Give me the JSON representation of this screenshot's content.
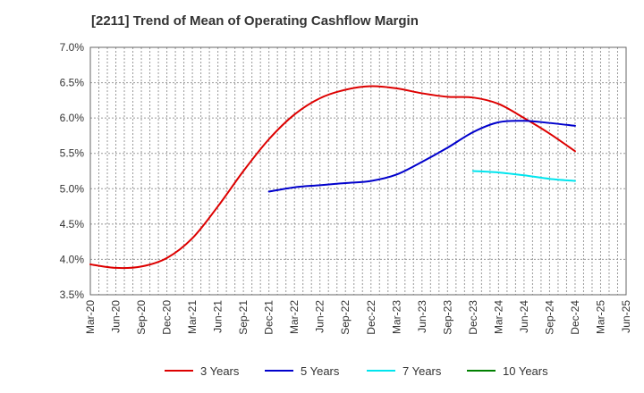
{
  "chart_data": {
    "type": "line",
    "title": "[2211]  Trend of Mean of Operating Cashflow Margin",
    "xlabel": "",
    "ylabel": "",
    "x": [
      "Mar-20",
      "Jun-20",
      "Sep-20",
      "Dec-20",
      "Mar-21",
      "Jun-21",
      "Sep-21",
      "Dec-21",
      "Mar-22",
      "Jun-22",
      "Sep-22",
      "Dec-22",
      "Mar-23",
      "Jun-23",
      "Sep-23",
      "Dec-23",
      "Mar-24",
      "Jun-24",
      "Sep-24",
      "Dec-24",
      "Mar-25",
      "Jun-25"
    ],
    "y_ticks": [
      "3.5%",
      "4.0%",
      "4.5%",
      "5.0%",
      "5.5%",
      "6.0%",
      "6.5%",
      "7.0%"
    ],
    "ylim": [
      3.5,
      7.0
    ],
    "grid": true,
    "legend_position": "bottom",
    "series": [
      {
        "name": "3 Years",
        "color": "#dd0000",
        "values": [
          3.93,
          3.88,
          3.9,
          4.02,
          4.3,
          4.75,
          5.25,
          5.7,
          6.05,
          6.28,
          6.4,
          6.45,
          6.42,
          6.35,
          6.3,
          6.29,
          6.2,
          6.0,
          5.78,
          5.53,
          null,
          null
        ]
      },
      {
        "name": "5 Years",
        "color": "#0000cc",
        "values": [
          null,
          null,
          null,
          null,
          null,
          null,
          null,
          4.96,
          5.02,
          5.05,
          5.08,
          5.11,
          5.2,
          5.38,
          5.58,
          5.8,
          5.94,
          5.96,
          5.93,
          5.89,
          null,
          null
        ]
      },
      {
        "name": "7 Years",
        "color": "#00e5ee",
        "values": [
          null,
          null,
          null,
          null,
          null,
          null,
          null,
          null,
          null,
          null,
          null,
          null,
          null,
          null,
          null,
          5.25,
          5.23,
          5.19,
          5.14,
          5.11,
          null,
          null
        ]
      },
      {
        "name": "10 Years",
        "color": "#008000",
        "values": [
          null,
          null,
          null,
          null,
          null,
          null,
          null,
          null,
          null,
          null,
          null,
          null,
          null,
          null,
          null,
          null,
          null,
          null,
          null,
          null,
          null,
          null
        ]
      }
    ]
  }
}
